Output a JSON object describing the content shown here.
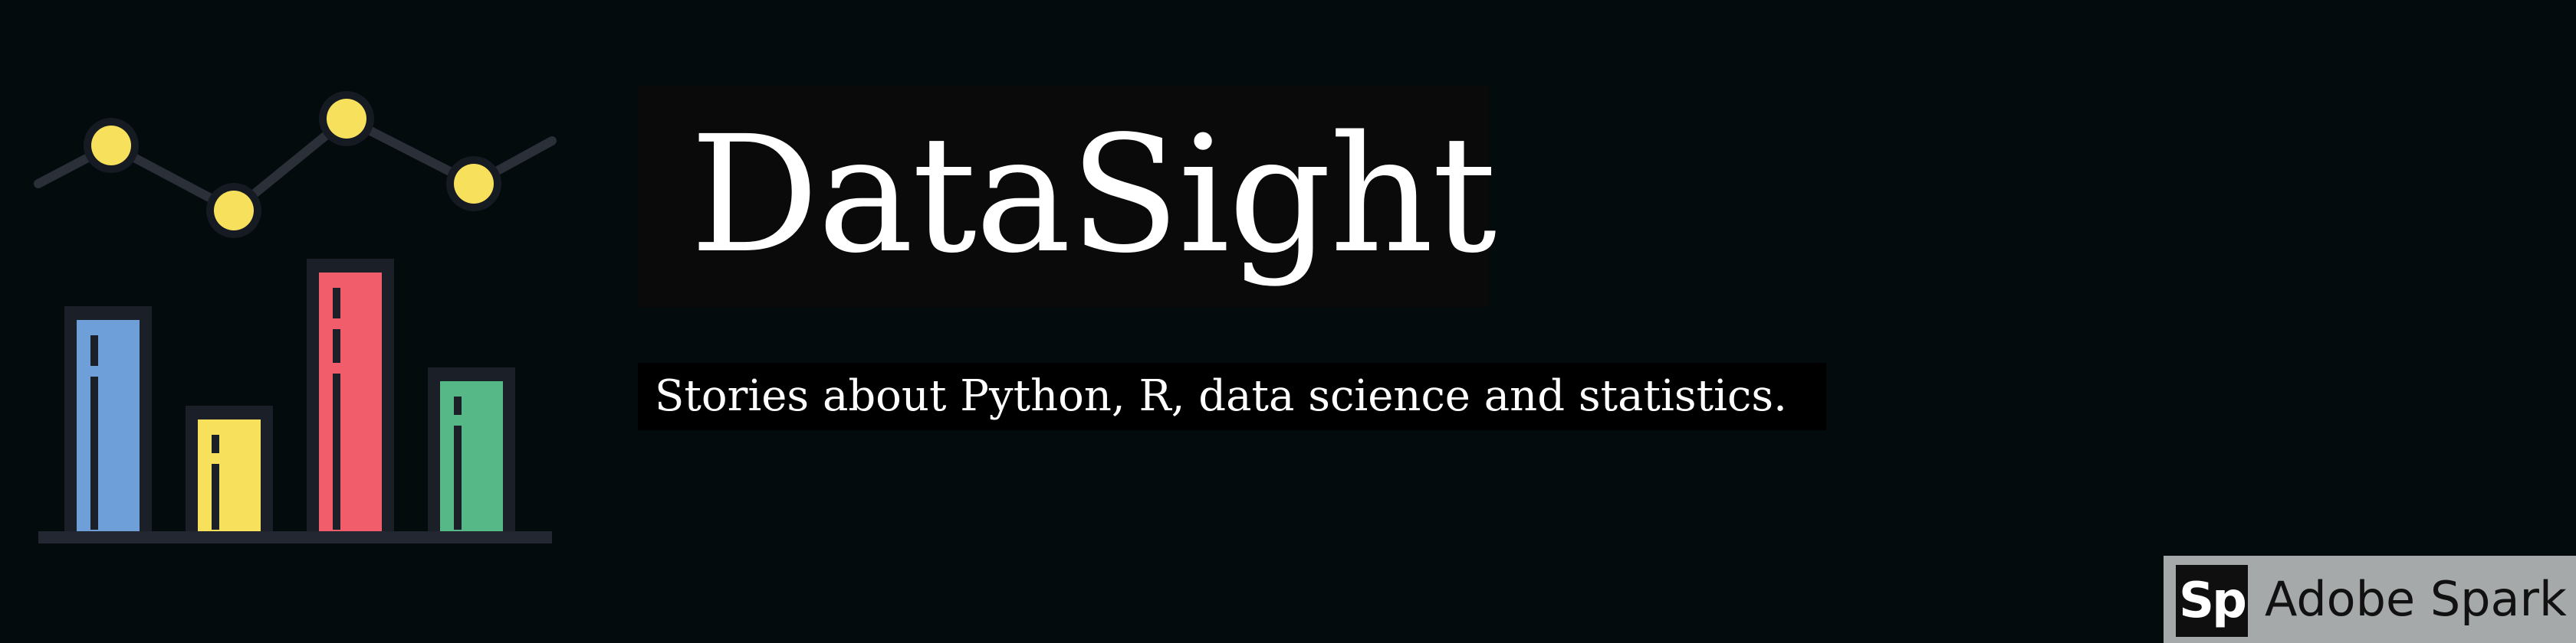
{
  "header": {
    "title": "DataSight",
    "subtitle": "Stories about Python, R, data science and statistics."
  },
  "logo": {
    "icon": "bar-and-line-chart-icon",
    "bar_colors": [
      "#6f9fd9",
      "#f7e15c",
      "#f25d6b",
      "#55b886"
    ],
    "point_color": "#f7e15c",
    "line_color": "#2b2f38"
  },
  "badge": {
    "mark": "Sp",
    "label": "Adobe Spark"
  }
}
